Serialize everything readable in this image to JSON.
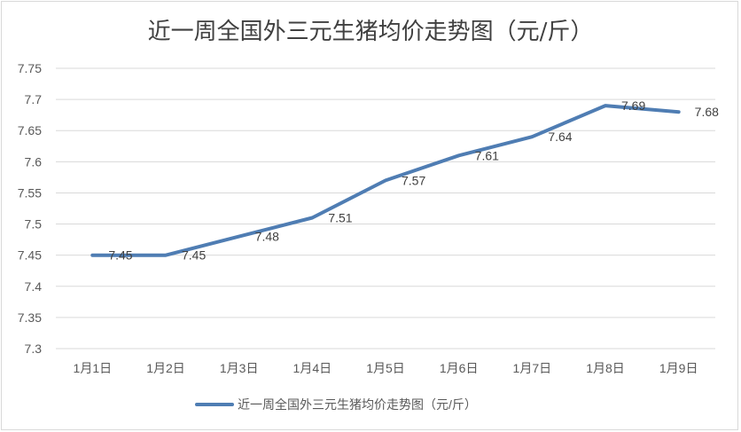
{
  "chart_data": {
    "type": "line",
    "title": "近一周全国外三元生猪均价走势图（元/斤）",
    "categories": [
      "1月1日",
      "1月2日",
      "1月3日",
      "1月4日",
      "1月5日",
      "1月6日",
      "1月7日",
      "1月8日",
      "1月9日"
    ],
    "series": [
      {
        "name": "近一周全国外三元生猪均价走势图（元/斤）",
        "values": [
          7.45,
          7.45,
          7.48,
          7.51,
          7.57,
          7.61,
          7.64,
          7.69,
          7.68
        ],
        "labels": [
          "7.45",
          "7.45",
          "7.48",
          "7.51",
          "7.57",
          "7.61",
          "7.64",
          "7.69",
          "7.68"
        ]
      }
    ],
    "ylim": [
      7.3,
      7.75
    ],
    "yticks": [
      "7.3",
      "7.35",
      "7.4",
      "7.45",
      "7.5",
      "7.55",
      "7.6",
      "7.65",
      "7.7",
      "7.75"
    ],
    "grid": true,
    "legend": "bottom",
    "colors": {
      "series": "#4f7db3",
      "grid": "#d9d9d9",
      "text": "#595959"
    }
  }
}
